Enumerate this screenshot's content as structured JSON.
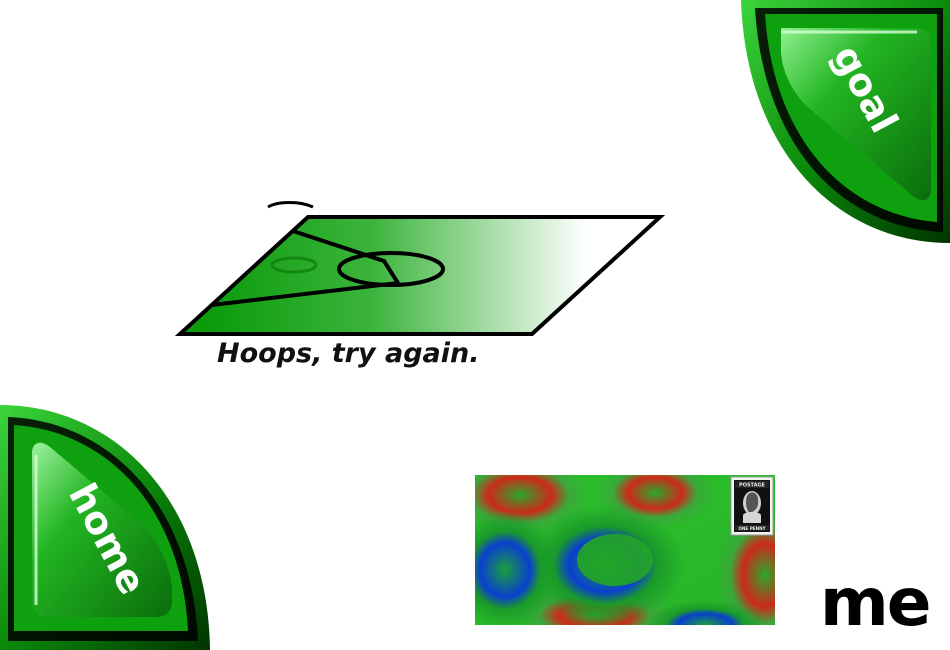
{
  "goal_button": {
    "label": "goal",
    "color": "#1fa01f"
  },
  "home_button": {
    "label": "home",
    "color": "#1fa01f"
  },
  "court": {
    "colors": {
      "fill_start": "#0a9a0a",
      "fill_end": "#ffffff",
      "outline": "#000000"
    }
  },
  "message": {
    "text": "Hoops, try again."
  },
  "postcard": {
    "stamp": {
      "top_text": "POSTAGE",
      "bottom_text": "ONE PENNY"
    }
  },
  "me_link": {
    "label": "me"
  }
}
